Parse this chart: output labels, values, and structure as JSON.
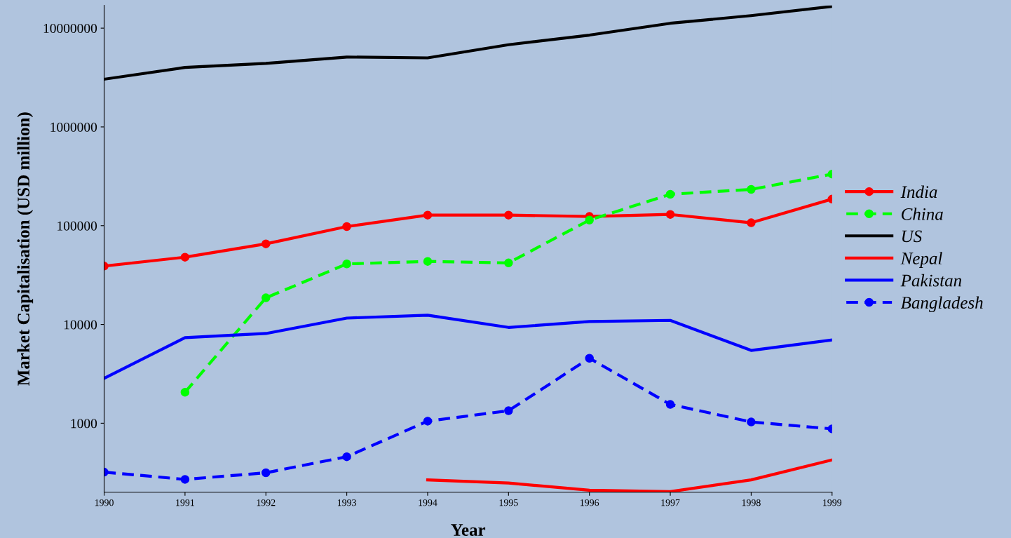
{
  "chart_data": {
    "type": "line",
    "xlabel": "Year",
    "ylabel": "Market Capitalisation (USD million)",
    "x": [
      1990,
      1991,
      1992,
      1993,
      1994,
      1995,
      1996,
      1997,
      1998,
      1999
    ],
    "xlim": [
      1990,
      1999
    ],
    "xticks": [
      1990,
      1991,
      1992,
      1993,
      1994,
      1995,
      1996,
      1997,
      1998,
      1999
    ],
    "log": "y",
    "ylim": [
      200,
      17000000
    ],
    "yticks": [
      1000,
      10000,
      100000,
      1000000,
      10000000
    ],
    "grid": false,
    "legend": "right",
    "series": [
      {
        "name": "India",
        "color": "#ff0000",
        "marker": "circle",
        "line_style": "solid",
        "values": [
          39000,
          48000,
          65500,
          98000,
          128000,
          128000,
          124000,
          130000,
          107000,
          186000
        ]
      },
      {
        "name": "China",
        "color": "#00ff00",
        "marker": "circle",
        "line_style": "dashed",
        "values": [
          null,
          2060,
          18600,
          41000,
          43500,
          42000,
          114000,
          208000,
          233000,
          333000
        ]
      },
      {
        "name": "US",
        "color": "#000000",
        "marker": "none",
        "line_style": "solid",
        "values": [
          3040000,
          4000000,
          4400000,
          5100000,
          5000000,
          6800000,
          8500000,
          11200000,
          13400000,
          16600000
        ]
      },
      {
        "name": "Nepal",
        "color": "#ff0000",
        "marker": "none",
        "line_style": "solid",
        "values": [
          null,
          null,
          null,
          null,
          267,
          248,
          210,
          203,
          267,
          425
        ]
      },
      {
        "name": "Pakistan",
        "color": "#0000ff",
        "marker": "none",
        "line_style": "solid",
        "values": [
          2850,
          7350,
          8100,
          11600,
          12400,
          9330,
          10700,
          11000,
          5460,
          6960
        ]
      },
      {
        "name": "Bangladesh",
        "color": "#0000ff",
        "marker": "circle",
        "line_style": "dashed",
        "values": [
          320,
          270,
          315,
          458,
          1050,
          1340,
          4550,
          1550,
          1030,
          877
        ]
      }
    ]
  }
}
